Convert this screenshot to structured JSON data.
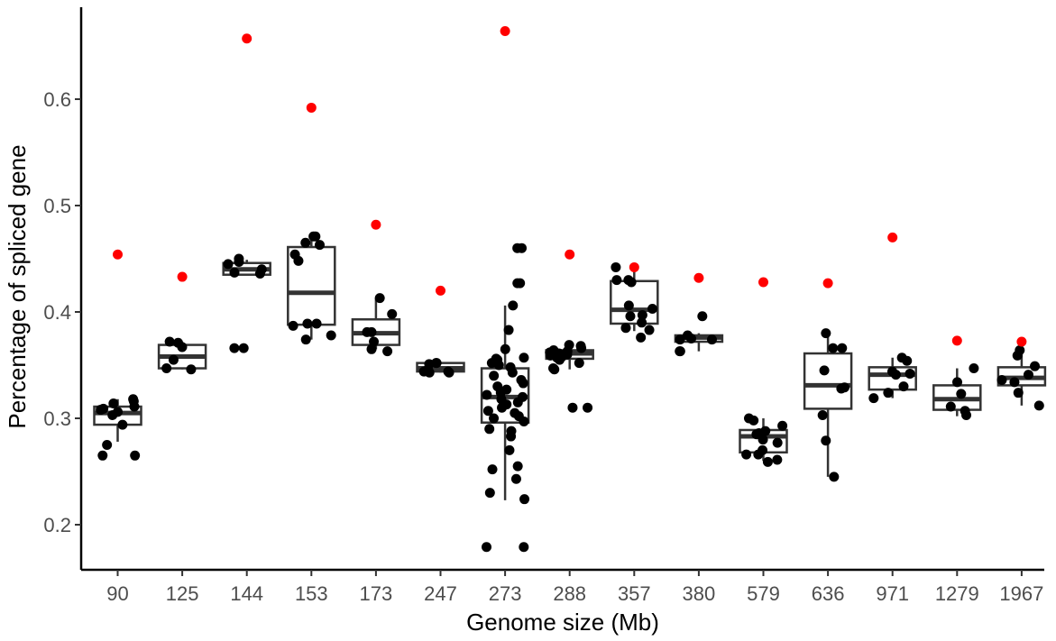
{
  "chart_data": {
    "type": "box",
    "title": "",
    "xlabel": "Genome size (Mb)",
    "ylabel": "Percentage of spliced gene",
    "categories": [
      "90",
      "125",
      "144",
      "153",
      "173",
      "247",
      "273",
      "288",
      "357",
      "380",
      "579",
      "636",
      "971",
      "1279",
      "1967"
    ],
    "ylim": [
      0.16,
      0.69
    ],
    "yticks": [
      0.2,
      0.3,
      0.4,
      0.5,
      0.6
    ],
    "ytick_labels": [
      "0.2",
      "0.3",
      "0.4",
      "0.5",
      "0.6"
    ],
    "grid": false,
    "legend": "none",
    "colors": {
      "box": "#333333",
      "point": "#000000",
      "highlight": "#ff0000",
      "axis": "#000000",
      "tick_text": "#4d4d4d"
    },
    "boxes": [
      {
        "category": "90",
        "q1": 0.294,
        "median": 0.305,
        "q3": 0.311,
        "whisker_low": 0.278,
        "whisker_high": 0.318
      },
      {
        "category": "125",
        "q1": 0.347,
        "median": 0.358,
        "q3": 0.369,
        "whisker_low": 0.346,
        "whisker_high": 0.372
      },
      {
        "category": "144",
        "q1": 0.435,
        "median": 0.44,
        "q3": 0.446,
        "whisker_low": 0.435,
        "whisker_high": 0.449
      },
      {
        "category": "153",
        "q1": 0.388,
        "median": 0.418,
        "q3": 0.461,
        "whisker_low": 0.374,
        "whisker_high": 0.471
      },
      {
        "category": "173",
        "q1": 0.369,
        "median": 0.38,
        "q3": 0.393,
        "whisker_low": 0.365,
        "whisker_high": 0.413
      },
      {
        "category": "247",
        "q1": 0.344,
        "median": 0.347,
        "q3": 0.352,
        "whisker_low": 0.343,
        "whisker_high": 0.353
      },
      {
        "category": "273",
        "q1": 0.296,
        "median": 0.32,
        "q3": 0.347,
        "whisker_low": 0.223,
        "whisker_high": 0.406
      },
      {
        "category": "288",
        "q1": 0.356,
        "median": 0.361,
        "q3": 0.364,
        "whisker_low": 0.346,
        "whisker_high": 0.369
      },
      {
        "category": "357",
        "q1": 0.389,
        "median": 0.402,
        "q3": 0.429,
        "whisker_low": 0.382,
        "whisker_high": 0.442
      },
      {
        "category": "380",
        "q1": 0.372,
        "median": 0.376,
        "q3": 0.378,
        "whisker_low": 0.363,
        "whisker_high": 0.38
      },
      {
        "category": "579",
        "q1": 0.268,
        "median": 0.283,
        "q3": 0.289,
        "whisker_low": 0.26,
        "whisker_high": 0.3
      },
      {
        "category": "636",
        "q1": 0.309,
        "median": 0.331,
        "q3": 0.361,
        "whisker_low": 0.245,
        "whisker_high": 0.38
      },
      {
        "category": "971",
        "q1": 0.327,
        "median": 0.341,
        "q3": 0.348,
        "whisker_low": 0.319,
        "whisker_high": 0.357
      },
      {
        "category": "1279",
        "q1": 0.308,
        "median": 0.318,
        "q3": 0.331,
        "whisker_low": 0.302,
        "whisker_high": 0.347
      },
      {
        "category": "1967",
        "q1": 0.331,
        "median": 0.338,
        "q3": 0.348,
        "whisker_low": 0.312,
        "whisker_high": 0.364
      }
    ],
    "points": [
      {
        "category": "90",
        "values": [
          0.318,
          0.311,
          0.308,
          0.314,
          0.316,
          0.309,
          0.303,
          0.306,
          0.294,
          0.275,
          0.265,
          0.265
        ]
      },
      {
        "category": "125",
        "values": [
          0.371,
          0.372,
          0.367,
          0.355,
          0.347,
          0.346
        ]
      },
      {
        "category": "144",
        "values": [
          0.447,
          0.45,
          0.445,
          0.44,
          0.437,
          0.436,
          0.366,
          0.366
        ]
      },
      {
        "category": "153",
        "values": [
          0.471,
          0.465,
          0.463,
          0.471,
          0.454,
          0.448,
          0.389,
          0.387,
          0.378,
          0.374,
          0.389
        ]
      },
      {
        "category": "173",
        "values": [
          0.413,
          0.398,
          0.381,
          0.381,
          0.372,
          0.365,
          0.363
        ]
      },
      {
        "category": "247",
        "values": [
          0.352,
          0.352,
          0.351,
          0.346,
          0.344,
          0.344,
          0.343,
          0.343
        ]
      },
      {
        "category": "273",
        "values": [
          0.46,
          0.46,
          0.427,
          0.427,
          0.406,
          0.383,
          0.365,
          0.357,
          0.356,
          0.355,
          0.352,
          0.35,
          0.348,
          0.343,
          0.34,
          0.336,
          0.333,
          0.33,
          0.327,
          0.324,
          0.322,
          0.32,
          0.318,
          0.315,
          0.313,
          0.31,
          0.307,
          0.305,
          0.302,
          0.3,
          0.297,
          0.29,
          0.288,
          0.283,
          0.27,
          0.255,
          0.252,
          0.243,
          0.23,
          0.224,
          0.179,
          0.179
        ]
      },
      {
        "category": "288",
        "values": [
          0.369,
          0.368,
          0.366,
          0.364,
          0.363,
          0.362,
          0.361,
          0.36,
          0.359,
          0.358,
          0.357,
          0.355,
          0.352,
          0.347,
          0.346,
          0.31,
          0.31
        ]
      },
      {
        "category": "357",
        "values": [
          0.442,
          0.43,
          0.43,
          0.428,
          0.406,
          0.403,
          0.397,
          0.396,
          0.39,
          0.385,
          0.383,
          0.376
        ]
      },
      {
        "category": "380",
        "values": [
          0.396,
          0.378,
          0.375,
          0.374,
          0.374,
          0.363,
          0.363
        ]
      },
      {
        "category": "579",
        "values": [
          0.3,
          0.298,
          0.293,
          0.288,
          0.286,
          0.285,
          0.28,
          0.277,
          0.27,
          0.266,
          0.266,
          0.261,
          0.259
        ]
      },
      {
        "category": "636",
        "values": [
          0.38,
          0.366,
          0.366,
          0.345,
          0.329,
          0.328,
          0.303,
          0.279,
          0.245
        ]
      },
      {
        "category": "971",
        "values": [
          0.357,
          0.354,
          0.344,
          0.342,
          0.341,
          0.33,
          0.324,
          0.319
        ]
      },
      {
        "category": "1279",
        "values": [
          0.347,
          0.334,
          0.323,
          0.311,
          0.307,
          0.303
        ]
      },
      {
        "category": "1967",
        "values": [
          0.364,
          0.359,
          0.349,
          0.341,
          0.336,
          0.334,
          0.324,
          0.312
        ]
      }
    ],
    "highlight_points": [
      {
        "category": "90",
        "value": 0.454
      },
      {
        "category": "125",
        "value": 0.433
      },
      {
        "category": "144",
        "value": 0.657
      },
      {
        "category": "153",
        "value": 0.592
      },
      {
        "category": "173",
        "value": 0.482
      },
      {
        "category": "247",
        "value": 0.42
      },
      {
        "category": "273",
        "value": 0.664
      },
      {
        "category": "288",
        "value": 0.454
      },
      {
        "category": "357",
        "value": 0.442
      },
      {
        "category": "380",
        "value": 0.432
      },
      {
        "category": "579",
        "value": 0.428
      },
      {
        "category": "636",
        "value": 0.427
      },
      {
        "category": "971",
        "value": 0.47
      },
      {
        "category": "1279",
        "value": 0.373
      },
      {
        "category": "1967",
        "value": 0.372
      }
    ]
  }
}
